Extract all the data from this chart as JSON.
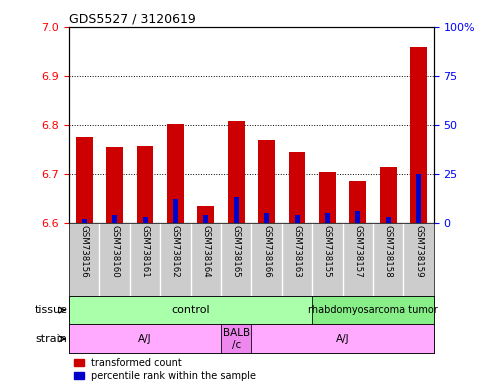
{
  "title": "GDS5527 / 3120619",
  "samples": [
    "GSM738156",
    "GSM738160",
    "GSM738161",
    "GSM738162",
    "GSM738164",
    "GSM738165",
    "GSM738166",
    "GSM738163",
    "GSM738155",
    "GSM738157",
    "GSM738158",
    "GSM738159"
  ],
  "transformed_count": [
    6.775,
    6.755,
    6.757,
    6.802,
    6.635,
    6.808,
    6.768,
    6.745,
    6.703,
    6.685,
    6.714,
    6.958
  ],
  "percentile_rank": [
    2,
    4,
    3,
    12,
    4,
    13,
    5,
    4,
    5,
    6,
    3,
    25
  ],
  "ymin": 6.6,
  "ymax": 7.0,
  "yticks": [
    6.6,
    6.7,
    6.8,
    6.9,
    7.0
  ],
  "right_yticks": [
    0,
    25,
    50,
    75,
    100
  ],
  "right_ylabels": [
    "0",
    "25",
    "50",
    "75",
    "100%"
  ],
  "bar_color_red": "#cc0000",
  "bar_color_blue": "#0000cc",
  "tissue_groups": [
    {
      "label": "control",
      "start": 0,
      "end": 8,
      "color": "#aaffaa"
    },
    {
      "label": "rhabdomyosarcoma tumor",
      "start": 8,
      "end": 12,
      "color": "#88ee88"
    }
  ],
  "strain_groups": [
    {
      "label": "A/J",
      "start": 0,
      "end": 5,
      "color": "#ffaaff"
    },
    {
      "label": "BALB\n/c",
      "start": 5,
      "end": 6,
      "color": "#ee88ee"
    },
    {
      "label": "A/J",
      "start": 6,
      "end": 12,
      "color": "#ffaaff"
    }
  ],
  "xlabel_tissue": "tissue",
  "xlabel_strain": "strain",
  "legend_red": "transformed count",
  "legend_blue": "percentile rank within the sample",
  "bar_width": 0.55,
  "label_color_bg": "#cccccc"
}
